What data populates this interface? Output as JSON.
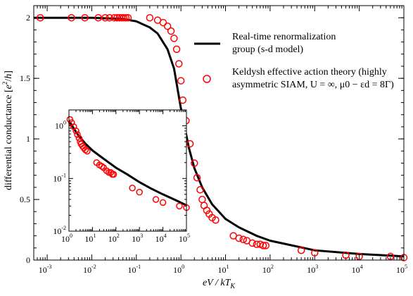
{
  "chart_data": [
    {
      "type": "line",
      "scale": {
        "x": "log",
        "y": "linear"
      },
      "xlim": [
        0.0005,
        100000
      ],
      "ylim": [
        0,
        2.1
      ],
      "xlabel": "eV / kT̃K",
      "ylabel": "differential conductance [e²/h]",
      "x_ticks": [
        {
          "base": "10",
          "exp": "-3",
          "v": 0.001
        },
        {
          "base": "10",
          "exp": "-2",
          "v": 0.01
        },
        {
          "base": "10",
          "exp": "-1",
          "v": 0.1
        },
        {
          "base": "10",
          "exp": "0",
          "v": 1
        },
        {
          "base": "10",
          "exp": "1",
          "v": 10
        },
        {
          "base": "10",
          "exp": "2",
          "v": 100
        },
        {
          "base": "10",
          "exp": "3",
          "v": 1000
        },
        {
          "base": "10",
          "exp": "4",
          "v": 10000
        },
        {
          "base": "10",
          "exp": "5",
          "v": 100000
        }
      ],
      "y_ticks": [
        {
          "label": "0",
          "v": 0
        },
        {
          "label": "0.5",
          "v": 0.5
        },
        {
          "label": "1",
          "v": 1
        },
        {
          "label": "1.5",
          "v": 1.5
        },
        {
          "label": "2",
          "v": 2
        }
      ],
      "legend_position": "top-right",
      "series": [
        {
          "name": "Real-time renormalization group (s-d model)",
          "name_lines": [
            "Real-time renormalization",
            "group (s-d model)"
          ],
          "style": "line",
          "color": "#000000",
          "x": [
            0.0005,
            0.001,
            0.01,
            0.05,
            0.1,
            0.2,
            0.3,
            0.5,
            0.7,
            1,
            1.5,
            2,
            3,
            5,
            10,
            20,
            50,
            100,
            1000,
            10000,
            100000
          ],
          "y": [
            2.0,
            2.0,
            2.0,
            1.99,
            1.97,
            1.92,
            1.87,
            1.74,
            1.58,
            1.25,
            0.93,
            0.76,
            0.6,
            0.46,
            0.34,
            0.27,
            0.2,
            0.16,
            0.08,
            0.05,
            0.03
          ]
        },
        {
          "name": "Keldysh effective action theory (highly asymmetric SIAM, U = ∞, μ0 − εd = 8Γ)",
          "name_lines": [
            "Keldysh effective action theory (highly",
            "asymmetric SIAM, U = ∞, μ0 − εd = 8Γ)"
          ],
          "style": "markers",
          "marker": "open-circle",
          "color": "#ff0000",
          "x": [
            0.0007,
            0.0035,
            0.007,
            0.014,
            0.02,
            0.025,
            0.032,
            0.037,
            0.042,
            0.047,
            0.052,
            0.058,
            0.065,
            0.2,
            0.3,
            0.4,
            0.5,
            0.6,
            0.7,
            0.8,
            0.9,
            1.0,
            1.1,
            1.3,
            1.6,
            2.0,
            2.3,
            2.7,
            3.0,
            3.3,
            3.8,
            4.3,
            5.0,
            6.0,
            15,
            20,
            25,
            30,
            40,
            50,
            60,
            70,
            80,
            500,
            1000,
            5000,
            10000,
            50000,
            100000
          ],
          "y": [
            2.0,
            2.0,
            2.0,
            2.0,
            2.0,
            2.0,
            2.0,
            2.0,
            2.0,
            2.0,
            2.0,
            2.0,
            2.0,
            2.0,
            1.98,
            1.96,
            1.93,
            1.89,
            1.83,
            1.74,
            1.62,
            1.48,
            1.32,
            1.15,
            0.96,
            0.8,
            0.68,
            0.58,
            0.5,
            0.45,
            0.41,
            0.38,
            0.35,
            0.33,
            0.2,
            0.18,
            0.17,
            0.16,
            0.14,
            0.13,
            0.13,
            0.12,
            0.12,
            0.08,
            0.06,
            0.04,
            0.03,
            0.03,
            0.02
          ]
        }
      ]
    },
    {
      "type": "line",
      "inset": true,
      "scale": {
        "x": "log",
        "y": "log"
      },
      "xlim": [
        1,
        100000
      ],
      "ylim": [
        0.01,
        2
      ],
      "x_ticks": [
        {
          "base": "10",
          "exp": "0",
          "v": 1
        },
        {
          "base": "10",
          "exp": "1",
          "v": 10
        },
        {
          "base": "10",
          "exp": "2",
          "v": 100
        },
        {
          "base": "10",
          "exp": "3",
          "v": 1000
        },
        {
          "base": "10",
          "exp": "4",
          "v": 10000
        },
        {
          "base": "10",
          "exp": "5",
          "v": 100000
        }
      ],
      "y_ticks": [
        {
          "base": "10",
          "exp": "0",
          "v": 1
        },
        {
          "base": "10",
          "exp": "-1",
          "v": 0.1
        },
        {
          "base": "10",
          "exp": "-2",
          "v": 0.01
        }
      ],
      "series": [
        {
          "name": "",
          "style": "line",
          "color": "#000000",
          "x": [
            1,
            2,
            3,
            5,
            10,
            20,
            50,
            100,
            300,
            1000,
            3000,
            10000,
            30000,
            100000
          ],
          "y": [
            1.25,
            0.76,
            0.6,
            0.46,
            0.34,
            0.27,
            0.2,
            0.16,
            0.12,
            0.085,
            0.065,
            0.05,
            0.04,
            0.031
          ]
        },
        {
          "name": "",
          "style": "markers",
          "marker": "open-circle",
          "color": "#ff0000",
          "x": [
            1.1,
            1.3,
            1.6,
            2.0,
            2.3,
            2.7,
            3.0,
            3.3,
            3.8,
            4.3,
            5.0,
            6.0,
            15,
            20,
            25,
            30,
            40,
            50,
            60,
            70,
            80,
            500,
            1000,
            5000,
            10000,
            50000,
            100000
          ],
          "y": [
            1.32,
            1.15,
            0.96,
            0.8,
            0.68,
            0.58,
            0.5,
            0.45,
            0.41,
            0.38,
            0.35,
            0.33,
            0.2,
            0.18,
            0.17,
            0.16,
            0.14,
            0.13,
            0.13,
            0.12,
            0.12,
            0.066,
            0.055,
            0.04,
            0.035,
            0.03,
            0.028
          ]
        }
      ]
    }
  ]
}
